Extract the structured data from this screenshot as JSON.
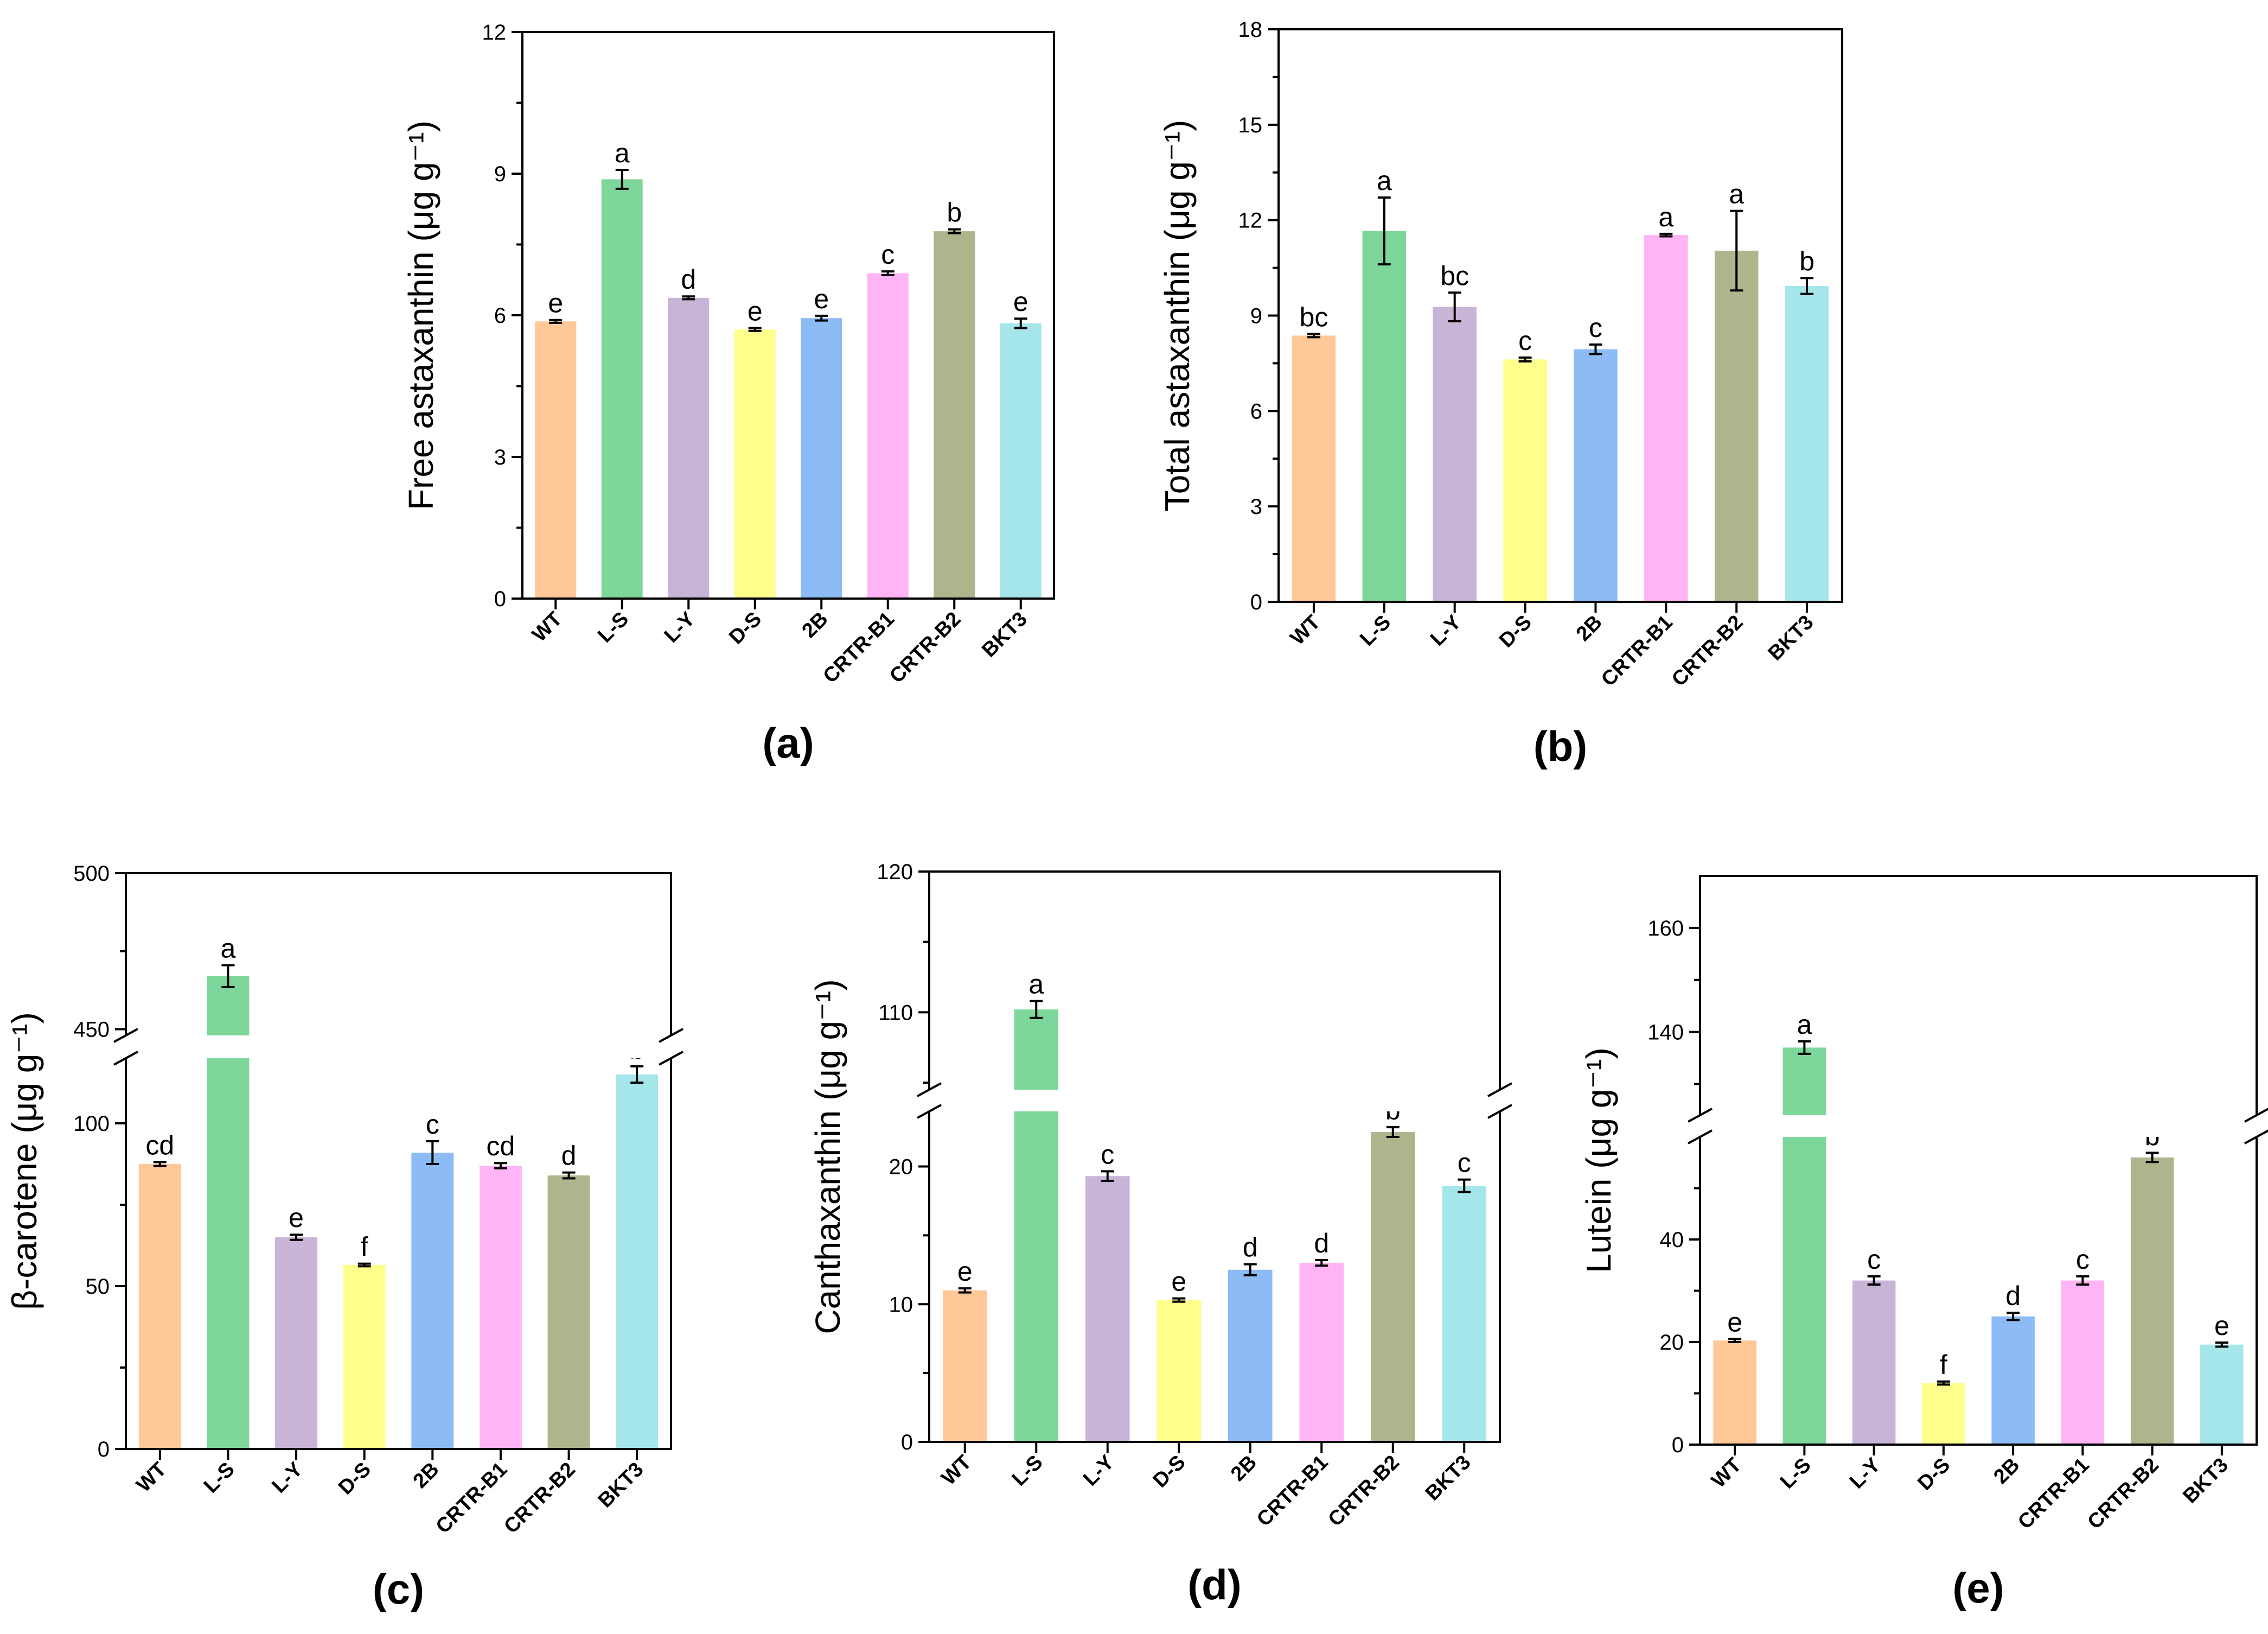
{
  "colors": [
    "#ffc896",
    "#7dd79b",
    "#c8b4d7",
    "#ffff8c",
    "#8cbbf5",
    "#ffb4f5",
    "#afb48c",
    "#a5e6eb"
  ],
  "chart_data": [
    {
      "panel": "(a)",
      "type": "bar",
      "categories": [
        "WT",
        "L-S",
        "L-Y",
        "D-S",
        "2B",
        "CRTR-B1",
        "CRTR-B2",
        "BKT3"
      ],
      "values": [
        5.87,
        8.88,
        6.37,
        5.7,
        5.94,
        6.89,
        7.78,
        5.83
      ],
      "errors": [
        0.03,
        0.2,
        0.03,
        0.03,
        0.05,
        0.04,
        0.04,
        0.1
      ],
      "letters": [
        "e",
        "a",
        "d",
        "e",
        "e",
        "c",
        "b",
        "e"
      ],
      "ylabel": "Free astaxanthin (μg g⁻¹)",
      "ylim": [
        0,
        12
      ],
      "yticks": [
        "0",
        "3",
        "6",
        "9",
        "12"
      ]
    },
    {
      "panel": "(b)",
      "type": "bar",
      "categories": [
        "WT",
        "L-S",
        "L-Y",
        "D-S",
        "2B",
        "CRTR-B1",
        "CRTR-B2",
        "BKT3"
      ],
      "values": [
        8.37,
        11.66,
        9.27,
        7.62,
        7.94,
        11.53,
        11.04,
        9.93
      ],
      "errors": [
        0.05,
        1.05,
        0.45,
        0.06,
        0.15,
        0.04,
        1.25,
        0.25
      ],
      "letters": [
        "bc",
        "a",
        "bc",
        "c",
        "c",
        "a",
        "a",
        "b"
      ],
      "ylabel": "Total astaxanthin (μg g⁻¹)",
      "ylim": [
        0,
        18
      ],
      "yticks": [
        "0",
        "3",
        "6",
        "9",
        "12",
        "15",
        "18"
      ]
    },
    {
      "panel": "(c)",
      "type": "bar",
      "broken_axis": true,
      "lower_range": [
        0,
        120
      ],
      "upper_range": [
        448,
        500
      ],
      "categories": [
        "WT",
        "L-S",
        "L-Y",
        "D-S",
        "2B",
        "CRTR-B1",
        "CRTR-B2",
        "BKT3"
      ],
      "values": [
        87.5,
        467,
        65,
        56.5,
        91,
        87,
        84,
        115
      ],
      "errors": [
        0.6,
        3.5,
        0.8,
        0.4,
        3.5,
        0.8,
        0.9,
        2.5
      ],
      "letters": [
        "cd",
        "a",
        "e",
        "f",
        "c",
        "cd",
        "d",
        "b"
      ],
      "ylabel": "β-carotene (μg g⁻¹)",
      "yticks": [
        "0",
        "50",
        "100",
        "450",
        "500"
      ]
    },
    {
      "panel": "(d)",
      "type": "bar",
      "broken_axis": true,
      "lower_range": [
        0,
        24
      ],
      "upper_range": [
        104.5,
        120
      ],
      "categories": [
        "WT",
        "L-S",
        "L-Y",
        "D-S",
        "2B",
        "CRTR-B1",
        "CRTR-B2",
        "BKT3"
      ],
      "values": [
        11,
        110.2,
        19.3,
        10.3,
        12.5,
        13,
        22.5,
        18.6
      ],
      "errors": [
        0.15,
        0.6,
        0.35,
        0.12,
        0.4,
        0.2,
        0.35,
        0.45
      ],
      "letters": [
        "e",
        "a",
        "c",
        "e",
        "d",
        "d",
        "b",
        "c"
      ],
      "ylabel": "Canthaxanthin (μg g⁻¹)",
      "yticks": [
        "0",
        "10",
        "20",
        "110",
        "120"
      ]
    },
    {
      "panel": "(e)",
      "type": "bar",
      "broken_axis": true,
      "lower_range": [
        0,
        60
      ],
      "upper_range": [
        124,
        170
      ],
      "categories": [
        "WT",
        "L-S",
        "L-Y",
        "D-S",
        "2B",
        "CRTR-B1",
        "CRTR-B2",
        "BKT3"
      ],
      "values": [
        20.3,
        137,
        32,
        12,
        25,
        32,
        56,
        19.5
      ],
      "errors": [
        0.3,
        1.2,
        0.8,
        0.3,
        0.7,
        0.8,
        0.9,
        0.4
      ],
      "letters": [
        "e",
        "a",
        "c",
        "f",
        "d",
        "c",
        "b",
        "e"
      ],
      "ylabel": "Lutein (μg g⁻¹)",
      "yticks": [
        "0",
        "20",
        "40",
        "140",
        "160"
      ]
    }
  ]
}
